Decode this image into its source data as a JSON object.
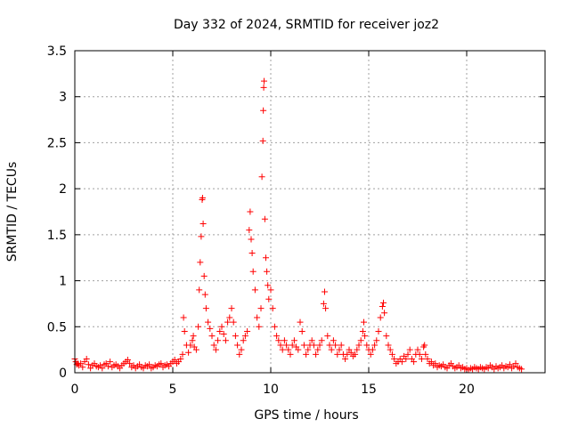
{
  "chart_data": {
    "type": "scatter",
    "title": "Day 332 of 2024, SRMTID for receiver joz2",
    "xlabel": "GPS time / hours",
    "ylabel": "SRMTID / TECUs",
    "xlim": [
      0,
      24
    ],
    "ylim": [
      0,
      3.5
    ],
    "xticks": [
      0,
      5,
      10,
      15,
      20
    ],
    "xtick_labels": [
      "0",
      "5",
      "10",
      "15",
      "20"
    ],
    "yticks": [
      0,
      0.5,
      1,
      1.5,
      2,
      2.5,
      3,
      3.5
    ],
    "ytick_labels": [
      "0",
      "0.5",
      "1",
      "1.5",
      "2",
      "2.5",
      "3",
      "3.5"
    ],
    "grid": true,
    "marker": "+",
    "color": "#ff0000",
    "series": [
      {
        "name": "SRMTID",
        "points": [
          [
            0.0,
            0.15
          ],
          [
            0.05,
            0.12
          ],
          [
            0.1,
            0.09
          ],
          [
            0.15,
            0.1
          ],
          [
            0.2,
            0.08
          ],
          [
            0.3,
            0.1
          ],
          [
            0.4,
            0.06
          ],
          [
            0.5,
            0.12
          ],
          [
            0.6,
            0.15
          ],
          [
            0.7,
            0.09
          ],
          [
            0.8,
            0.05
          ],
          [
            0.9,
            0.08
          ],
          [
            1.0,
            0.1
          ],
          [
            1.1,
            0.07
          ],
          [
            1.2,
            0.06
          ],
          [
            1.3,
            0.08
          ],
          [
            1.4,
            0.05
          ],
          [
            1.5,
            0.09
          ],
          [
            1.6,
            0.1
          ],
          [
            1.7,
            0.07
          ],
          [
            1.8,
            0.12
          ],
          [
            1.9,
            0.06
          ],
          [
            2.0,
            0.08
          ],
          [
            2.1,
            0.09
          ],
          [
            2.2,
            0.07
          ],
          [
            2.3,
            0.05
          ],
          [
            2.4,
            0.08
          ],
          [
            2.5,
            0.1
          ],
          [
            2.6,
            0.12
          ],
          [
            2.7,
            0.14
          ],
          [
            2.8,
            0.1
          ],
          [
            2.9,
            0.06
          ],
          [
            3.0,
            0.08
          ],
          [
            3.1,
            0.05
          ],
          [
            3.2,
            0.07
          ],
          [
            3.3,
            0.09
          ],
          [
            3.4,
            0.06
          ],
          [
            3.5,
            0.05
          ],
          [
            3.6,
            0.08
          ],
          [
            3.7,
            0.07
          ],
          [
            3.8,
            0.09
          ],
          [
            3.9,
            0.05
          ],
          [
            4.0,
            0.06
          ],
          [
            4.1,
            0.08
          ],
          [
            4.2,
            0.07
          ],
          [
            4.3,
            0.09
          ],
          [
            4.4,
            0.1
          ],
          [
            4.5,
            0.06
          ],
          [
            4.6,
            0.08
          ],
          [
            4.7,
            0.09
          ],
          [
            4.8,
            0.07
          ],
          [
            4.9,
            0.1
          ],
          [
            5.0,
            0.12
          ],
          [
            5.1,
            0.14
          ],
          [
            5.2,
            0.1
          ],
          [
            5.3,
            0.12
          ],
          [
            5.4,
            0.15
          ],
          [
            5.5,
            0.2
          ],
          [
            5.55,
            0.6
          ],
          [
            5.6,
            0.45
          ],
          [
            5.7,
            0.3
          ],
          [
            5.8,
            0.22
          ],
          [
            5.9,
            0.3
          ],
          [
            6.0,
            0.35
          ],
          [
            6.05,
            0.4
          ],
          [
            6.1,
            0.28
          ],
          [
            6.2,
            0.25
          ],
          [
            6.3,
            0.5
          ],
          [
            6.35,
            0.9
          ],
          [
            6.4,
            1.2
          ],
          [
            6.45,
            1.48
          ],
          [
            6.5,
            1.88
          ],
          [
            6.52,
            1.9
          ],
          [
            6.55,
            1.62
          ],
          [
            6.6,
            1.05
          ],
          [
            6.65,
            0.85
          ],
          [
            6.7,
            0.7
          ],
          [
            6.8,
            0.55
          ],
          [
            6.9,
            0.48
          ],
          [
            7.0,
            0.4
          ],
          [
            7.1,
            0.3
          ],
          [
            7.2,
            0.25
          ],
          [
            7.3,
            0.35
          ],
          [
            7.4,
            0.45
          ],
          [
            7.5,
            0.5
          ],
          [
            7.6,
            0.42
          ],
          [
            7.7,
            0.35
          ],
          [
            7.8,
            0.55
          ],
          [
            7.9,
            0.6
          ],
          [
            8.0,
            0.7
          ],
          [
            8.1,
            0.55
          ],
          [
            8.2,
            0.4
          ],
          [
            8.3,
            0.3
          ],
          [
            8.4,
            0.2
          ],
          [
            8.5,
            0.25
          ],
          [
            8.6,
            0.35
          ],
          [
            8.7,
            0.4
          ],
          [
            8.8,
            0.45
          ],
          [
            8.9,
            1.55
          ],
          [
            8.95,
            1.75
          ],
          [
            9.0,
            1.45
          ],
          [
            9.05,
            1.3
          ],
          [
            9.1,
            1.1
          ],
          [
            9.2,
            0.9
          ],
          [
            9.3,
            0.6
          ],
          [
            9.4,
            0.5
          ],
          [
            9.5,
            0.7
          ],
          [
            9.55,
            2.13
          ],
          [
            9.6,
            2.52
          ],
          [
            9.62,
            2.85
          ],
          [
            9.64,
            3.1
          ],
          [
            9.66,
            3.17
          ],
          [
            9.7,
            1.67
          ],
          [
            9.75,
            1.25
          ],
          [
            9.8,
            1.1
          ],
          [
            9.85,
            0.95
          ],
          [
            9.9,
            0.8
          ],
          [
            10.0,
            0.9
          ],
          [
            10.1,
            0.7
          ],
          [
            10.2,
            0.5
          ],
          [
            10.3,
            0.4
          ],
          [
            10.4,
            0.35
          ],
          [
            10.5,
            0.3
          ],
          [
            10.6,
            0.25
          ],
          [
            10.7,
            0.35
          ],
          [
            10.8,
            0.3
          ],
          [
            10.9,
            0.25
          ],
          [
            11.0,
            0.2
          ],
          [
            11.1,
            0.3
          ],
          [
            11.2,
            0.35
          ],
          [
            11.3,
            0.28
          ],
          [
            11.4,
            0.25
          ],
          [
            11.5,
            0.55
          ],
          [
            11.6,
            0.45
          ],
          [
            11.7,
            0.3
          ],
          [
            11.8,
            0.2
          ],
          [
            11.9,
            0.25
          ],
          [
            12.0,
            0.3
          ],
          [
            12.1,
            0.35
          ],
          [
            12.2,
            0.3
          ],
          [
            12.3,
            0.2
          ],
          [
            12.4,
            0.25
          ],
          [
            12.5,
            0.3
          ],
          [
            12.6,
            0.35
          ],
          [
            12.7,
            0.75
          ],
          [
            12.75,
            0.88
          ],
          [
            12.8,
            0.7
          ],
          [
            12.9,
            0.4
          ],
          [
            13.0,
            0.3
          ],
          [
            13.1,
            0.25
          ],
          [
            13.2,
            0.35
          ],
          [
            13.3,
            0.3
          ],
          [
            13.4,
            0.2
          ],
          [
            13.5,
            0.25
          ],
          [
            13.6,
            0.3
          ],
          [
            13.7,
            0.2
          ],
          [
            13.8,
            0.15
          ],
          [
            13.9,
            0.2
          ],
          [
            14.0,
            0.25
          ],
          [
            14.1,
            0.22
          ],
          [
            14.2,
            0.18
          ],
          [
            14.3,
            0.2
          ],
          [
            14.4,
            0.25
          ],
          [
            14.5,
            0.3
          ],
          [
            14.6,
            0.35
          ],
          [
            14.7,
            0.45
          ],
          [
            14.75,
            0.55
          ],
          [
            14.8,
            0.4
          ],
          [
            14.9,
            0.3
          ],
          [
            15.0,
            0.25
          ],
          [
            15.1,
            0.2
          ],
          [
            15.2,
            0.25
          ],
          [
            15.3,
            0.3
          ],
          [
            15.4,
            0.35
          ],
          [
            15.5,
            0.45
          ],
          [
            15.6,
            0.6
          ],
          [
            15.7,
            0.72
          ],
          [
            15.75,
            0.76
          ],
          [
            15.8,
            0.65
          ],
          [
            15.9,
            0.4
          ],
          [
            16.0,
            0.3
          ],
          [
            16.1,
            0.25
          ],
          [
            16.2,
            0.2
          ],
          [
            16.3,
            0.15
          ],
          [
            16.4,
            0.1
          ],
          [
            16.5,
            0.12
          ],
          [
            16.6,
            0.15
          ],
          [
            16.7,
            0.12
          ],
          [
            16.8,
            0.18
          ],
          [
            16.9,
            0.15
          ],
          [
            17.0,
            0.2
          ],
          [
            17.1,
            0.25
          ],
          [
            17.2,
            0.15
          ],
          [
            17.3,
            0.12
          ],
          [
            17.4,
            0.2
          ],
          [
            17.5,
            0.25
          ],
          [
            17.6,
            0.2
          ],
          [
            17.7,
            0.15
          ],
          [
            17.8,
            0.28
          ],
          [
            17.85,
            0.3
          ],
          [
            17.9,
            0.2
          ],
          [
            18.0,
            0.15
          ],
          [
            18.1,
            0.1
          ],
          [
            18.2,
            0.12
          ],
          [
            18.3,
            0.08
          ],
          [
            18.4,
            0.1
          ],
          [
            18.5,
            0.06
          ],
          [
            18.6,
            0.08
          ],
          [
            18.7,
            0.07
          ],
          [
            18.8,
            0.09
          ],
          [
            18.9,
            0.06
          ],
          [
            19.0,
            0.05
          ],
          [
            19.1,
            0.08
          ],
          [
            19.2,
            0.1
          ],
          [
            19.3,
            0.07
          ],
          [
            19.4,
            0.05
          ],
          [
            19.5,
            0.06
          ],
          [
            19.6,
            0.08
          ],
          [
            19.7,
            0.05
          ],
          [
            19.8,
            0.06
          ],
          [
            19.9,
            0.04
          ],
          [
            20.0,
            0.05
          ],
          [
            20.1,
            0.03
          ],
          [
            20.2,
            0.05
          ],
          [
            20.3,
            0.04
          ],
          [
            20.4,
            0.06
          ],
          [
            20.5,
            0.05
          ],
          [
            20.6,
            0.04
          ],
          [
            20.7,
            0.06
          ],
          [
            20.8,
            0.05
          ],
          [
            20.9,
            0.04
          ],
          [
            21.0,
            0.06
          ],
          [
            21.1,
            0.05
          ],
          [
            21.2,
            0.08
          ],
          [
            21.3,
            0.06
          ],
          [
            21.4,
            0.04
          ],
          [
            21.5,
            0.07
          ],
          [
            21.6,
            0.05
          ],
          [
            21.7,
            0.06
          ],
          [
            21.8,
            0.08
          ],
          [
            21.9,
            0.05
          ],
          [
            22.0,
            0.07
          ],
          [
            22.1,
            0.06
          ],
          [
            22.2,
            0.09
          ],
          [
            22.3,
            0.05
          ],
          [
            22.4,
            0.07
          ],
          [
            22.5,
            0.1
          ],
          [
            22.6,
            0.06
          ],
          [
            22.7,
            0.05
          ],
          [
            22.8,
            0.04
          ]
        ]
      }
    ]
  }
}
